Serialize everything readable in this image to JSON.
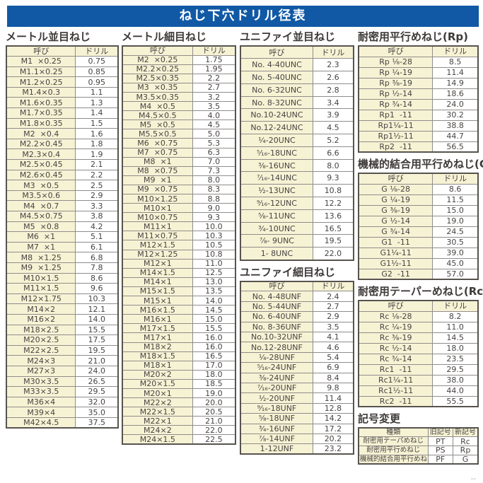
{
  "banner": {
    "title": "ねじ下穴ドリル径表"
  },
  "colors": {
    "banner_bg": "#1159a5",
    "banner_fg": "#ffffff",
    "cell_yellow": "#f6f2d4",
    "border_dark": "#57544f",
    "border_light": "#8f8d8a",
    "text": "#474443",
    "title": "#3e3a39"
  },
  "footer": {
    "corner_mark": "--"
  },
  "tables": {
    "metric_coarse": {
      "title": "メートル並目ねじ",
      "headers": [
        "呼び",
        "ドリル"
      ],
      "rows": [
        [
          "M1  ×0.25",
          "0.75"
        ],
        [
          "M1.1×0.25",
          "0.85"
        ],
        [
          "M1.2×0.25",
          "0.95"
        ],
        [
          "M1.4×0.3",
          "1.1"
        ],
        [
          "M1.6×0.35",
          "1.3"
        ],
        [
          "M1.7×0.35",
          "1.4"
        ],
        [
          "M1.8×0.35",
          "1.5"
        ],
        [
          "M2  ×0.4",
          "1.6"
        ],
        [
          "M2.2×0.45",
          "1.8"
        ],
        [
          "M2.3×0.4",
          "1.9"
        ],
        [
          "M2.5×0.45",
          "2.1"
        ],
        [
          "M2.6×0.45",
          "2.2"
        ],
        [
          "M3  ×0.5",
          "2.5"
        ],
        [
          "M3.5×0.6",
          "2.9"
        ],
        [
          "M4  ×0.7",
          "3.3"
        ],
        [
          "M4.5×0.75",
          "3.8"
        ],
        [
          "M5  ×0.8",
          "4.2"
        ],
        [
          "M6  ×1",
          "5.1"
        ],
        [
          "M7  ×1",
          "6.1"
        ],
        [
          "M8  ×1.25",
          "6.8"
        ],
        [
          "M9  ×1.25",
          "7.8"
        ],
        [
          "M10×1.5",
          "8.6"
        ],
        [
          "M11×1.5",
          "9.6"
        ],
        [
          "M12×1.75",
          "10.3"
        ],
        [
          "M14×2",
          "12.1"
        ],
        [
          "M16×2",
          "14.0"
        ],
        [
          "M18×2.5",
          "15.5"
        ],
        [
          "M20×2.5",
          "17.5"
        ],
        [
          "M22×2.5",
          "19.5"
        ],
        [
          "M24×3",
          "21.0"
        ],
        [
          "M27×3",
          "24.0"
        ],
        [
          "M30×3.5",
          "26.5"
        ],
        [
          "M33×3.5",
          "29.5"
        ],
        [
          "M36×4",
          "32.0"
        ],
        [
          "M39×4",
          "35.0"
        ],
        [
          "M42×4.5",
          "37.5"
        ]
      ]
    },
    "metric_fine": {
      "title": "メートル細目ねじ",
      "headers": [
        "呼び",
        "ドリル"
      ],
      "rows": [
        [
          "M2  ×0.25",
          "1.75"
        ],
        [
          "M2.2×0.25",
          "1.95"
        ],
        [
          "M2.5×0.35",
          "2.2"
        ],
        [
          "M3  ×0.35",
          "2.7"
        ],
        [
          "M3.5×0.35",
          "3.2"
        ],
        [
          "M4  ×0.5",
          "3.5"
        ],
        [
          "M4.5×0.5",
          "4.0"
        ],
        [
          "M5  ×0.5",
          "4.5"
        ],
        [
          "M5.5×0.5",
          "5.0"
        ],
        [
          "M6  ×0.75",
          "5.3"
        ],
        [
          "M7  ×0.75",
          "6.3"
        ],
        [
          "M8  ×1",
          "7.0"
        ],
        [
          "M8  ×0.75",
          "7.3"
        ],
        [
          "M9  ×1",
          "8.0"
        ],
        [
          "M9  ×0.75",
          "8.3"
        ],
        [
          "M10×1.25",
          "8.8"
        ],
        [
          "M10×1",
          "9.0"
        ],
        [
          "M10×0.75",
          "9.3"
        ],
        [
          "M11×1",
          "10.0"
        ],
        [
          "M11×0.75",
          "10.3"
        ],
        [
          "M12×1.5",
          "10.5"
        ],
        [
          "M12×1.25",
          "10.8"
        ],
        [
          "M12×1",
          "11.0"
        ],
        [
          "M14×1.5",
          "12.5"
        ],
        [
          "M14×1",
          "13.0"
        ],
        [
          "M15×1.5",
          "13.5"
        ],
        [
          "M15×1",
          "14.0"
        ],
        [
          "M16×1.5",
          "14.5"
        ],
        [
          "M16×1",
          "15.0"
        ],
        [
          "M17×1.5",
          "15.5"
        ],
        [
          "M17×1",
          "16.0"
        ],
        [
          "M18×2",
          "16.0"
        ],
        [
          "M18×1.5",
          "16.5"
        ],
        [
          "M18×1",
          "17.0"
        ],
        [
          "M20×2",
          "18.0"
        ],
        [
          "M20×1.5",
          "18.5"
        ],
        [
          "M20×1",
          "19.0"
        ],
        [
          "M22×2",
          "20.0"
        ],
        [
          "M22×1.5",
          "20.5"
        ],
        [
          "M22×1",
          "21.0"
        ],
        [
          "M24×2",
          "22.0"
        ],
        [
          "M24×1.5",
          "22.5"
        ]
      ]
    },
    "unified_coarse": {
      "title": "ユニファイ並目ねじ",
      "headers": [
        "呼び",
        "ドリル"
      ],
      "rows": [
        [
          "No. 4-40UNC",
          "2.3"
        ],
        [
          "No. 5-40UNC",
          "2.6"
        ],
        [
          "No. 6-32UNC",
          "2.8"
        ],
        [
          "No. 8-32UNC",
          "3.4"
        ],
        [
          "No.10-24UNC",
          "3.9"
        ],
        [
          "No.12-24UNC",
          "4.5"
        ],
        [
          "¹⁄₄-20UNC",
          "5.2"
        ],
        [
          "⁵⁄₁₆-18UNC",
          "6.6"
        ],
        [
          "³⁄₈-16UNC",
          "8.0"
        ],
        [
          "⁷⁄₁₆-14UNC",
          "9.3"
        ],
        [
          "¹⁄₂-13UNC",
          "10.8"
        ],
        [
          "⁹⁄₁₆-12UNC",
          "12.2"
        ],
        [
          "⁵⁄₈-11UNC",
          "13.6"
        ],
        [
          "³⁄₄-10UNC",
          "16.5"
        ],
        [
          "⁷⁄₈- 9UNC",
          "19.5"
        ],
        [
          "1- 8UNC",
          "22.0"
        ]
      ]
    },
    "unified_fine": {
      "title": "ユニファイ細目ねじ",
      "headers": [
        "呼び",
        "ドリル"
      ],
      "rows": [
        [
          "No. 4-48UNF",
          "2.4"
        ],
        [
          "No. 5-44UNF",
          "2.7"
        ],
        [
          "No. 6-40UNF",
          "2.9"
        ],
        [
          "No. 8-36UNF",
          "3.5"
        ],
        [
          "No.10-32UNF",
          "4.1"
        ],
        [
          "No.12-28UNF",
          "4.6"
        ],
        [
          "¹⁄₄-28UNF",
          "5.4"
        ],
        [
          "⁵⁄₁₆-24UNF",
          "6.9"
        ],
        [
          "³⁄₈-24UNF",
          "8.4"
        ],
        [
          "⁷⁄₁₆-20UNF",
          "9.8"
        ],
        [
          "¹⁄₂-20UNF",
          "11.4"
        ],
        [
          "⁹⁄₁₆-18UNF",
          "12.8"
        ],
        [
          "⁵⁄₈-18UNF",
          "14.2"
        ],
        [
          "³⁄₄-16UNF",
          "17.2"
        ],
        [
          "⁷⁄₈-14UNF",
          "20.2"
        ],
        [
          "1-12UNF",
          "23.2"
        ]
      ]
    },
    "rp": {
      "title": "耐密用平行めねじ(Rp)",
      "headers": [
        "呼び",
        "ドリル"
      ],
      "rows": [
        [
          "Rp ¹⁄₈-28",
          "8.5"
        ],
        [
          "Rp ¹⁄₄-19",
          "11.4"
        ],
        [
          "Rp ³⁄₈-19",
          "14.9"
        ],
        [
          "Rp ¹⁄₂-14",
          "18.6"
        ],
        [
          "Rp ³⁄₄-14",
          "24.0"
        ],
        [
          "Rp1  -11",
          "30.2"
        ],
        [
          "Rp1¹⁄₄-11",
          "38.8"
        ],
        [
          "Rp1¹⁄₂-11",
          "44.7"
        ],
        [
          "Rp2  -11",
          "56.5"
        ]
      ]
    },
    "g": {
      "title": "機械的結合用平行めねじ(G)",
      "headers": [
        "呼び",
        "ドリル"
      ],
      "rows": [
        [
          "G ¹⁄₈-28",
          "8.6"
        ],
        [
          "G ¹⁄₄-19",
          "11.5"
        ],
        [
          "G ³⁄₈-19",
          "15.0"
        ],
        [
          "G ¹⁄₂-14",
          "19.0"
        ],
        [
          "G ³⁄₄-14",
          "24.5"
        ],
        [
          "G1  -11",
          "30.5"
        ],
        [
          "G1¹⁄₄-11",
          "39.0"
        ],
        [
          "G1¹⁄₂-11",
          "45.0"
        ],
        [
          "G2  -11",
          "57.0"
        ]
      ]
    },
    "rc": {
      "title": "耐密用テーパーめねじ(Rc)",
      "headers": [
        "呼び",
        "ドリル"
      ],
      "rows": [
        [
          "Rc ¹⁄₈-28",
          "8.2"
        ],
        [
          "Rc ¹⁄₄-19",
          "11.0"
        ],
        [
          "Rc ³⁄₈-19",
          "14.5"
        ],
        [
          "Rc ¹⁄₂-14",
          "18.0"
        ],
        [
          "Rc ³⁄₄-14",
          "23.5"
        ],
        [
          "Rc1  -11",
          "29.5"
        ],
        [
          "Rc1¹⁄₄-11",
          "38.0"
        ],
        [
          "Rc1¹⁄₂-11",
          "44.0"
        ],
        [
          "Rc2  -11",
          "55.5"
        ]
      ]
    },
    "symbol_change": {
      "title": "記号変更",
      "headers": [
        "種類",
        "旧記号",
        "新記号"
      ],
      "rows": [
        [
          "耐密用テーパめねじ",
          "PT",
          "Rc"
        ],
        [
          "耐密用平行めねじ",
          "PS",
          "Rp"
        ],
        [
          "機械的結合用平行めねじ",
          "PF",
          "G"
        ]
      ]
    }
  }
}
